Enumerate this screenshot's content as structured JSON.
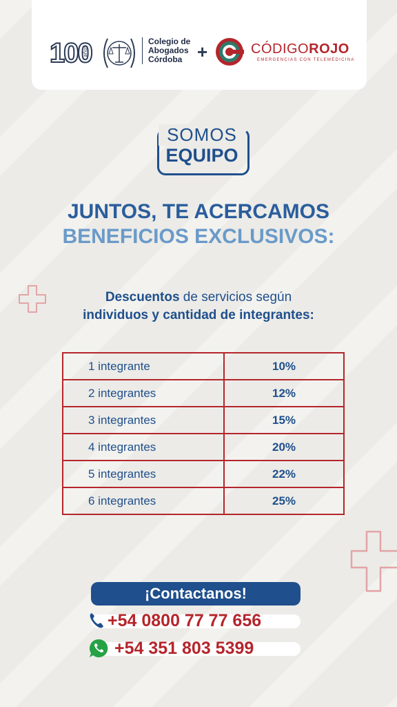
{
  "header": {
    "logo_100": "100",
    "logo_anos": "años",
    "colegio_lines": [
      "Colegio de",
      "Abogados",
      "Córdoba"
    ],
    "plus": "+",
    "codigo_light": "CÓDIGO",
    "codigo_bold": "ROJO",
    "codigo_sub": "EMERGENCIAS CON TELEMEDICINA"
  },
  "badge": {
    "line1": "SOMOS",
    "line2": "EQUIPO"
  },
  "headline": {
    "line1": "JUNTOS, TE ACERCAMOS",
    "line2": "BENEFICIOS EXCLUSIVOS:"
  },
  "description": {
    "line1_bold": "Descuentos",
    "line1_rest": " de servicios según",
    "line2": "individuos y cantidad de integrantes:"
  },
  "discounts": [
    {
      "members": "1 integrante",
      "discount": "10%"
    },
    {
      "members": "2 integrantes",
      "discount": "12%"
    },
    {
      "members": "3 integrantes",
      "discount": "15%"
    },
    {
      "members": "4 integrantes",
      "discount": "20%"
    },
    {
      "members": "5 integrantes",
      "discount": "22%"
    },
    {
      "members": "6 integrantes",
      "discount": "25%"
    }
  ],
  "contact": {
    "title": "¡Contactanos!",
    "phone": "+54 0800 77 77 656",
    "whatsapp": "+54 351 803 5399"
  },
  "colors": {
    "primary_blue": "#1f4f8c",
    "light_blue": "#6a9ac9",
    "brand_red": "#b5252b",
    "background": "#ecebe7"
  },
  "icons": [
    "phone-icon",
    "whatsapp-icon",
    "medical-cross-icon",
    "scales-of-justice-icon"
  ]
}
